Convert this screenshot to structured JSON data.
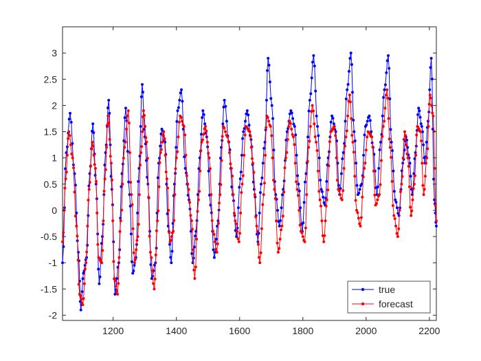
{
  "chart_data": {
    "type": "line",
    "title": "",
    "xlabel": "",
    "ylabel": "",
    "xlim": [
      1040,
      2222
    ],
    "ylim": [
      -2.1,
      3.5
    ],
    "xticks": [
      {
        "value": 1200,
        "label": "1200"
      },
      {
        "value": 1400,
        "label": "1400"
      },
      {
        "value": 1600,
        "label": "1600"
      },
      {
        "value": 1800,
        "label": "1800"
      },
      {
        "value": 2000,
        "label": "2000"
      },
      {
        "value": 2200,
        "label": "2200"
      }
    ],
    "yticks": [
      {
        "value": -2,
        "label": "-2"
      },
      {
        "value": -1.5,
        "label": "-1.5"
      },
      {
        "value": -1,
        "label": "-1"
      },
      {
        "value": -0.5,
        "label": "-0.5"
      },
      {
        "value": 0,
        "label": "0"
      },
      {
        "value": 0.5,
        "label": "0.5"
      },
      {
        "value": 1,
        "label": "1"
      },
      {
        "value": 1.5,
        "label": "1.5"
      },
      {
        "value": 2,
        "label": "2"
      },
      {
        "value": 2.5,
        "label": "2.5"
      },
      {
        "value": 3,
        "label": "3"
      }
    ],
    "grid": false,
    "legend": {
      "position": "bottom-right"
    },
    "series": [
      {
        "name": "true",
        "color": "#0000ff",
        "marker": "dot",
        "x": [
          1040,
          1052,
          1064,
          1078,
          1090,
          1098,
          1106,
          1116,
          1126,
          1136,
          1146,
          1156,
          1166,
          1176,
          1186,
          1196,
          1206,
          1218,
          1228,
          1240,
          1252,
          1262,
          1272,
          1282,
          1292,
          1300,
          1310,
          1322,
          1334,
          1344,
          1354,
          1364,
          1374,
          1384,
          1394,
          1404,
          1416,
          1428,
          1440,
          1452,
          1462,
          1474,
          1484,
          1496,
          1508,
          1520,
          1532,
          1542,
          1552,
          1566,
          1578,
          1590,
          1602,
          1612,
          1624,
          1636,
          1646,
          1658,
          1668,
          1680,
          1690,
          1702,
          1714,
          1726,
          1738,
          1750,
          1762,
          1774,
          1786,
          1798,
          1810,
          1822,
          1834,
          1846,
          1858,
          1870,
          1880,
          1892,
          1904,
          1916,
          1928,
          1940,
          1952,
          1962,
          1974,
          1986,
          1998,
          2010,
          2022,
          2034,
          2046,
          2058,
          2070,
          2080,
          2092,
          2104,
          2116,
          2126,
          2136,
          2146,
          2156,
          2166,
          2176,
          2186,
          2196,
          2206,
          2216,
          2222
        ],
        "y": [
          -1.0,
          1.1,
          1.85,
          0.7,
          -0.8,
          -1.9,
          -1.2,
          -0.9,
          0.7,
          1.65,
          0.5,
          -1.4,
          -0.5,
          1.1,
          2.1,
          0.4,
          -1.6,
          -1.0,
          0.7,
          1.95,
          0.3,
          -1.2,
          -0.9,
          0.8,
          2.4,
          1.4,
          0.5,
          -1.3,
          -1.0,
          0.9,
          1.55,
          1.3,
          -0.3,
          -1.0,
          0.5,
          1.9,
          2.3,
          0.8,
          0.2,
          -1.0,
          -0.4,
          1.0,
          1.9,
          1.4,
          0.1,
          -0.9,
          -0.2,
          1.2,
          2.1,
          1.3,
          0.3,
          -0.5,
          0.6,
          1.5,
          1.9,
          1.35,
          0.4,
          -0.6,
          0.5,
          1.3,
          2.9,
          2.0,
          0.3,
          -0.3,
          0.4,
          1.5,
          1.9,
          1.6,
          0.5,
          -0.4,
          0.7,
          2.1,
          2.95,
          1.6,
          0.4,
          0.1,
          1.0,
          1.8,
          1.5,
          0.3,
          1.1,
          2.3,
          3.0,
          1.5,
          0.3,
          0.5,
          1.6,
          1.8,
          1.2,
          0.3,
          1.3,
          2.3,
          2.95,
          1.3,
          0.2,
          -0.1,
          0.9,
          1.4,
          1.0,
          0.3,
          1.1,
          1.95,
          1.6,
          0.9,
          1.7,
          2.9,
          0.2,
          -0.3
        ]
      },
      {
        "name": "forecast",
        "color": "#ff0000",
        "marker": "dot",
        "x": [
          1040,
          1050,
          1060,
          1072,
          1084,
          1094,
          1104,
          1114,
          1124,
          1134,
          1144,
          1154,
          1164,
          1174,
          1184,
          1194,
          1204,
          1214,
          1224,
          1236,
          1248,
          1258,
          1268,
          1278,
          1288,
          1296,
          1306,
          1318,
          1330,
          1340,
          1350,
          1360,
          1370,
          1380,
          1390,
          1400,
          1412,
          1424,
          1436,
          1448,
          1458,
          1470,
          1480,
          1492,
          1504,
          1516,
          1528,
          1538,
          1548,
          1562,
          1574,
          1586,
          1598,
          1608,
          1620,
          1632,
          1642,
          1654,
          1664,
          1676,
          1686,
          1698,
          1710,
          1722,
          1734,
          1746,
          1758,
          1770,
          1782,
          1794,
          1806,
          1818,
          1830,
          1842,
          1854,
          1866,
          1876,
          1888,
          1900,
          1912,
          1924,
          1936,
          1948,
          1958,
          1970,
          1982,
          1994,
          2006,
          2018,
          2030,
          2042,
          2054,
          2066,
          2076,
          2088,
          2100,
          2112,
          2122,
          2132,
          2142,
          2152,
          2162,
          2172,
          2182,
          2192,
          2202,
          2212,
          2222
        ],
        "y": [
          -0.6,
          0.6,
          1.5,
          1.0,
          -0.3,
          -1.6,
          -1.8,
          -1.0,
          0.4,
          1.3,
          0.8,
          -0.9,
          -1.0,
          0.6,
          1.8,
          0.9,
          -1.3,
          -1.6,
          -0.2,
          1.2,
          1.9,
          0.3,
          -1.0,
          -0.5,
          1.1,
          1.9,
          1.3,
          -0.8,
          -1.5,
          -0.2,
          1.1,
          1.5,
          0.6,
          -0.6,
          -0.4,
          1.0,
          1.8,
          1.6,
          0.5,
          -0.2,
          -1.3,
          0.2,
          1.3,
          1.6,
          1.0,
          -0.4,
          -0.8,
          0.3,
          1.6,
          1.4,
          0.8,
          -0.2,
          -0.6,
          0.5,
          1.6,
          1.5,
          0.9,
          -0.3,
          -1.0,
          0.3,
          1.8,
          1.6,
          0.4,
          -0.8,
          -0.3,
          1.0,
          1.7,
          1.4,
          0.4,
          -0.4,
          -0.6,
          1.2,
          2.0,
          1.3,
          0.2,
          -0.6,
          0.2,
          1.5,
          1.6,
          0.4,
          0.2,
          1.4,
          2.2,
          1.3,
          0.0,
          -0.3,
          0.8,
          1.5,
          1.4,
          0.1,
          0.3,
          1.6,
          2.3,
          1.2,
          -0.1,
          -0.5,
          0.5,
          1.5,
          1.0,
          -0.1,
          0.5,
          1.6,
          1.5,
          0.3,
          1.0,
          2.2,
          1.8,
          -0.2
        ]
      }
    ]
  }
}
